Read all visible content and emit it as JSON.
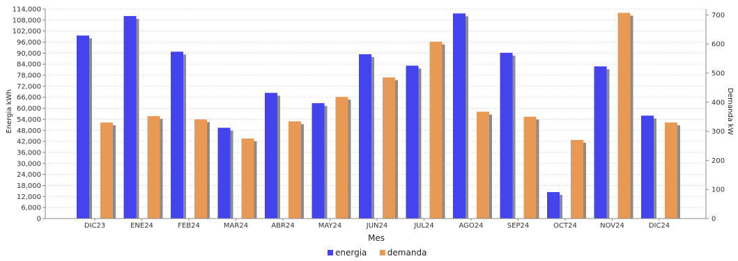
{
  "chart_data": {
    "type": "bar",
    "title": "",
    "xlabel": "Mes",
    "ylabel_left": "Energia kWh",
    "ylabel_right": "Demanda kW",
    "categories": [
      "DIC23",
      "ENE24",
      "FEB24",
      "MAR24",
      "ABR24",
      "MAY24",
      "JUN24",
      "JUL24",
      "AGO24",
      "SEP24",
      "OCT24",
      "NOV24",
      "DIC24"
    ],
    "series": [
      {
        "name": "energia",
        "axis": "left",
        "color": "#4444ee",
        "values": [
          99600,
          110200,
          90800,
          49400,
          68400,
          62800,
          89400,
          83200,
          111600,
          90200,
          14400,
          82800,
          56000
        ]
      },
      {
        "name": "demanda",
        "axis": "right",
        "color": "#e89a55",
        "values": [
          330,
          352,
          341,
          275,
          334,
          418,
          485,
          608,
          367,
          350,
          270,
          707,
          330
        ]
      }
    ],
    "ylim_left": [
      0,
      114000
    ],
    "yticks_left": [
      "0",
      "6,000",
      "12,000",
      "18,000",
      "24,000",
      "30,000",
      "36,000",
      "42,000",
      "48,000",
      "54,000",
      "60,000",
      "66,000",
      "72,000",
      "78,000",
      "84,000",
      "90,000",
      "96,000",
      "102,000",
      "108,000",
      "114,000"
    ],
    "ylim_right": [
      0,
      720
    ],
    "yticks_right": [
      "0",
      "100",
      "200",
      "300",
      "400",
      "500",
      "600",
      "700"
    ],
    "grid": true,
    "legend_position": "bottom"
  }
}
